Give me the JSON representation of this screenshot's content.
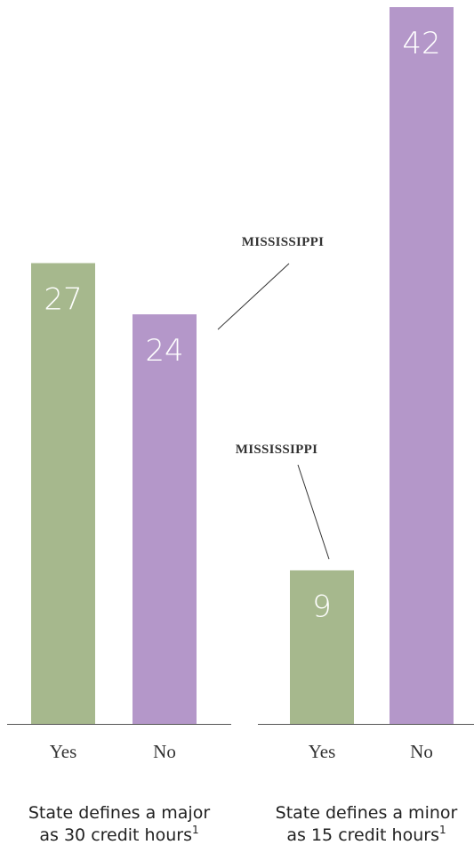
{
  "chart_data": [
    {
      "type": "bar",
      "categories": [
        "Yes",
        "No"
      ],
      "values": [
        27,
        24
      ],
      "colors": [
        "#a6b88d",
        "#b497c9"
      ],
      "ylim": [
        0,
        42
      ],
      "annotation": "MISSISSIPPI",
      "caption": [
        "State defines a major",
        "as 30 credit hours"
      ],
      "footnote": "1"
    },
    {
      "type": "bar",
      "categories": [
        "Yes",
        "No"
      ],
      "values": [
        9,
        42
      ],
      "colors": [
        "#a6b88d",
        "#b497c9"
      ],
      "ylim": [
        0,
        42
      ],
      "annotation": "MISSISSIPPI",
      "caption": [
        "State defines a minor",
        "as 15 credit hours"
      ],
      "footnote": "1"
    }
  ]
}
